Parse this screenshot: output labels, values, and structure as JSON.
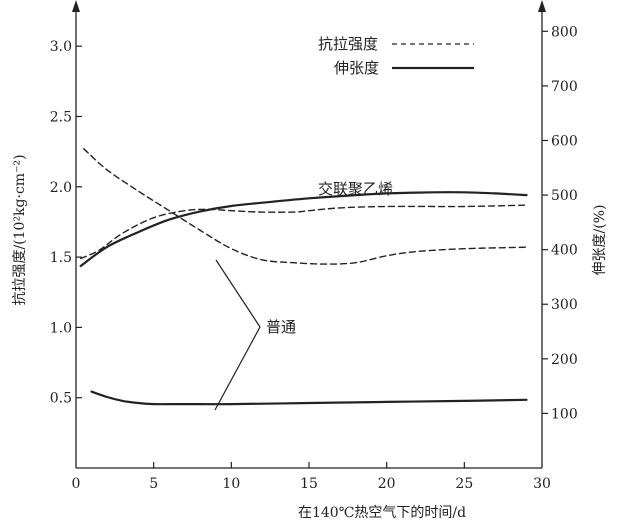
{
  "chart_data": {
    "type": "line",
    "xlabel": "在140℃热空气下的时间/d",
    "ylabel_left": "抗拉强度/(10²kg·cm⁻²)",
    "ylabel_right": "伸张度/(%)",
    "xlim": [
      0,
      30
    ],
    "ylim_left": [
      0,
      3.3
    ],
    "ylim_right": [
      0,
      850
    ],
    "x_ticks": [
      0,
      5,
      10,
      15,
      20,
      25,
      30
    ],
    "y_left_ticks": [
      0.5,
      1.0,
      1.5,
      2.0,
      2.5,
      3.0
    ],
    "y_right_ticks": [
      100,
      200,
      300,
      400,
      500,
      600,
      700,
      800
    ],
    "grid": false,
    "legend_position": "top-right",
    "legend": [
      {
        "label": "抗拉强度",
        "style": "dashed"
      },
      {
        "label": "伸张度",
        "style": "solid"
      }
    ],
    "annotations": {
      "crosslinked": "交联聚乙烯",
      "ordinary": "普通"
    },
    "series": [
      {
        "legend_label": "抗拉强度",
        "group": "普通",
        "axis": "left",
        "style": "dashed",
        "x": [
          0.5,
          2,
          4,
          6,
          8,
          10,
          12,
          14,
          16,
          18,
          20,
          22,
          25,
          29
        ],
        "y": [
          2.27,
          2.12,
          1.97,
          1.83,
          1.69,
          1.56,
          1.48,
          1.46,
          1.45,
          1.46,
          1.51,
          1.54,
          1.56,
          1.57
        ]
      },
      {
        "legend_label": "抗拉强度",
        "group": "交联聚乙烯",
        "axis": "left",
        "style": "dashed",
        "x": [
          0.3,
          1.5,
          3,
          5,
          7,
          8.5,
          10,
          12,
          14,
          15,
          17,
          20,
          25,
          29
        ],
        "y": [
          1.49,
          1.55,
          1.67,
          1.78,
          1.83,
          1.84,
          1.83,
          1.82,
          1.82,
          1.83,
          1.85,
          1.86,
          1.86,
          1.87
        ]
      },
      {
        "legend_label": "伸张度",
        "group": "交联聚乙烯",
        "axis": "right",
        "style": "solid",
        "x": [
          0.3,
          2,
          4,
          6,
          8,
          10,
          12,
          15,
          18,
          20,
          23,
          25,
          27,
          29
        ],
        "y": [
          370,
          405,
          432,
          455,
          470,
          480,
          486,
          494,
          500,
          503,
          505,
          505,
          503,
          500
        ]
      },
      {
        "legend_label": "伸张度",
        "group": "普通",
        "axis": "right",
        "style": "solid",
        "x": [
          1,
          2,
          3,
          4,
          5,
          7,
          10,
          15,
          20,
          25,
          29
        ],
        "y": [
          140,
          130,
          123,
          119,
          117,
          117,
          117,
          119,
          121,
          123,
          125
        ]
      }
    ]
  }
}
